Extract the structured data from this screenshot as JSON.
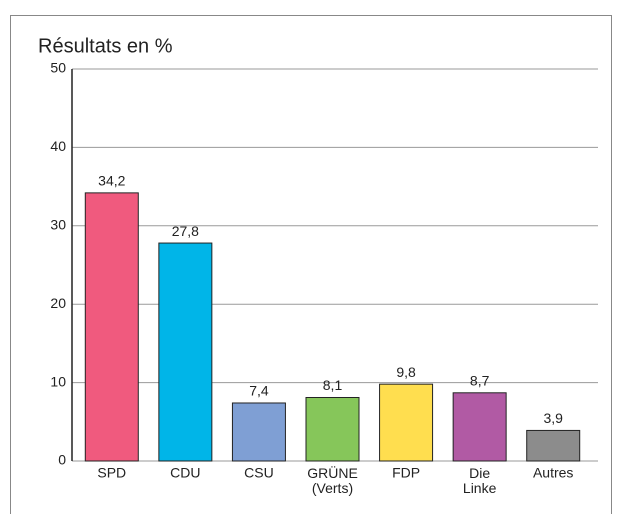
{
  "chart_data": {
    "type": "bar",
    "title": "Résultats en %",
    "categories": [
      "SPD",
      "CDU",
      "CSU",
      "GRÜNE (Verts)",
      "FDP",
      "Die Linke",
      "Autres"
    ],
    "values": [
      34.2,
      27.8,
      7.4,
      8.1,
      9.8,
      8.7,
      3.9
    ],
    "value_labels": [
      "34,2",
      "27,8",
      "7,4",
      "8,1",
      "9,8",
      "8,7",
      "3,9"
    ],
    "colors": [
      "#f05a7e",
      "#00b5e8",
      "#7f9fd4",
      "#86c65a",
      "#ffde4f",
      "#b15aa4",
      "#8c8c8c"
    ],
    "ylim": [
      0,
      50
    ],
    "yticks": [
      0,
      10,
      20,
      30,
      40,
      50
    ],
    "grid": true
  }
}
